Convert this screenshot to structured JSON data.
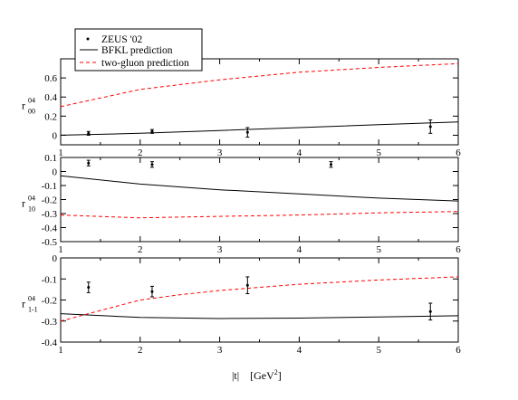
{
  "chart_data": {
    "type": "line",
    "xlabel": "|t|    [GeV",
    "xlabel_sup": "2",
    "xlabel_close": "]",
    "x_ticks": [
      1,
      2,
      3,
      4,
      5,
      6
    ],
    "xlim": [
      1,
      6
    ],
    "legend": {
      "placement": "top-left",
      "entries": [
        {
          "label": "ZEUS '02",
          "style": "points"
        },
        {
          "label": "BFKL prediction",
          "style": "solid",
          "color": "#000000"
        },
        {
          "label": "two-gluon prediction",
          "style": "dashed",
          "color": "#ff0000"
        }
      ]
    },
    "panels": [
      {
        "ylabel": "r",
        "ylabel_sup": "04",
        "ylabel_sub": "00",
        "ylim": [
          -0.1,
          0.8
        ],
        "y_ticks": [
          0,
          0.2,
          0.4,
          0.6
        ],
        "y_tick_labels": [
          "0",
          "0.2",
          "0.4",
          "0.6"
        ],
        "series": [
          {
            "style": "solid",
            "color": "#000000",
            "x": [
              1,
              2,
              3,
              4,
              5,
              6
            ],
            "y": [
              0.0,
              0.02,
              0.05,
              0.08,
              0.11,
              0.14
            ]
          },
          {
            "style": "dashed",
            "color": "#ff0000",
            "x": [
              1,
              1.5,
              2,
              3,
              4,
              5,
              6
            ],
            "y": [
              0.3,
              0.39,
              0.48,
              0.58,
              0.66,
              0.71,
              0.75
            ]
          }
        ],
        "points": [
          {
            "x": 1.35,
            "y": 0.02,
            "err": 0.02
          },
          {
            "x": 2.15,
            "y": 0.04,
            "err": 0.02
          },
          {
            "x": 3.35,
            "y": 0.03,
            "err": 0.05
          },
          {
            "x": 5.65,
            "y": 0.09,
            "err": 0.07
          }
        ]
      },
      {
        "ylabel": "r",
        "ylabel_sup": "04",
        "ylabel_sub": "10",
        "ylim": [
          -0.5,
          0.1
        ],
        "y_ticks": [
          0.1,
          0,
          -0.1,
          -0.2,
          -0.3,
          -0.4,
          -0.5
        ],
        "y_tick_labels": [
          "0.1",
          "0",
          "-0.1",
          "-0.2",
          "-0.3",
          "-0.4",
          "-0.5"
        ],
        "series": [
          {
            "style": "solid",
            "color": "#000000",
            "x": [
              1,
              2,
              3,
              4,
              5,
              6
            ],
            "y": [
              -0.03,
              -0.09,
              -0.13,
              -0.16,
              -0.19,
              -0.21
            ]
          },
          {
            "style": "dashed",
            "color": "#ff0000",
            "x": [
              1,
              2,
              3,
              4,
              5,
              6
            ],
            "y": [
              -0.31,
              -0.33,
              -0.32,
              -0.31,
              -0.295,
              -0.285
            ]
          }
        ],
        "points": [
          {
            "x": 1.35,
            "y": 0.06,
            "err": 0.02
          },
          {
            "x": 2.15,
            "y": 0.05,
            "err": 0.02
          },
          {
            "x": 4.4,
            "y": 0.05,
            "err": 0.02
          }
        ]
      },
      {
        "ylabel": "r",
        "ylabel_sup": "04",
        "ylabel_sub": "1-1",
        "ylim": [
          -0.4,
          0
        ],
        "y_ticks": [
          0,
          -0.1,
          -0.2,
          -0.3,
          -0.4
        ],
        "y_tick_labels": [
          "0",
          "-0.1",
          "-0.2",
          "-0.3",
          "-0.4"
        ],
        "series": [
          {
            "style": "solid",
            "color": "#000000",
            "x": [
              1,
              2,
              3,
              4,
              5,
              6
            ],
            "y": [
              -0.265,
              -0.283,
              -0.288,
              -0.286,
              -0.281,
              -0.275
            ]
          },
          {
            "style": "dashed",
            "color": "#ff0000",
            "x": [
              1,
              1.5,
              2,
              2.5,
              3,
              4,
              5,
              6
            ],
            "y": [
              -0.3,
              -0.25,
              -0.2,
              -0.175,
              -0.155,
              -0.125,
              -0.105,
              -0.09
            ]
          }
        ],
        "points": [
          {
            "x": 1.35,
            "y": -0.14,
            "err": 0.025
          },
          {
            "x": 2.15,
            "y": -0.16,
            "err": 0.025
          },
          {
            "x": 3.35,
            "y": -0.13,
            "err": 0.04
          },
          {
            "x": 5.65,
            "y": -0.255,
            "err": 0.04
          }
        ]
      }
    ]
  }
}
